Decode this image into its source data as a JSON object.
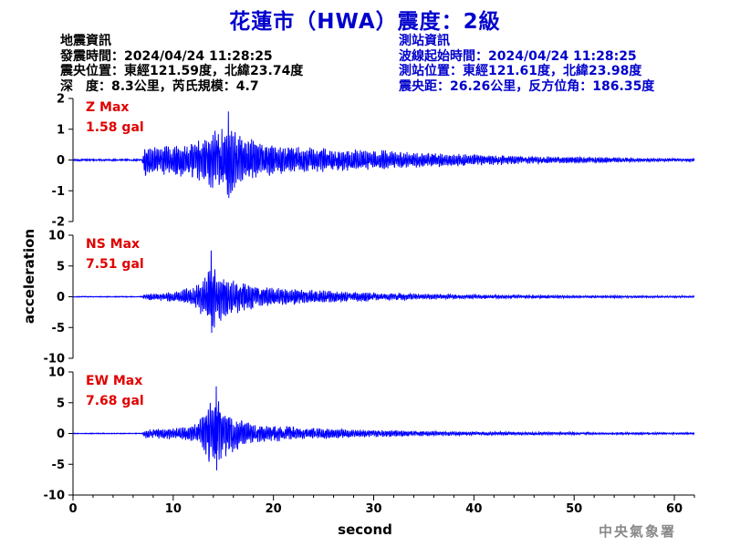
{
  "title": "花蓮市（HWA）震度：2級",
  "quake_info": {
    "heading": "地震資訊",
    "time": "發震時間：2024/04/24 11:28:25",
    "epicenter": "震央位置：東經121.59度，北緯23.74度",
    "depth_magnitude": "深　度：8.3公里，芮氏規模：4.7"
  },
  "station_info": {
    "heading": "測站資訊",
    "wave_start": "波線起始時間：2024/04/24 11:28:25",
    "location": "測站位置：東經121.61度，北緯23.98度",
    "distance": "震央距：26.26公里，反方位角：186.35度"
  },
  "agency": "中央氣象署",
  "colors": {
    "title": "#0000cc",
    "trace": "#0000ff",
    "max_label": "#e00000",
    "station_text": "#0000cc",
    "agency": "#8a8a8a"
  },
  "chart_data": {
    "type": "line",
    "xlabel": "second",
    "ylabel": "acceleration",
    "xlim": [
      0,
      62
    ],
    "x_ticks": [
      0,
      10,
      20,
      30,
      40,
      50,
      60
    ],
    "grid": false,
    "p_arrival_s": 7.0,
    "panels": [
      {
        "name": "Z Max",
        "max_value": "1.58 gal",
        "ylim": [
          -2,
          2
        ],
        "y_ticks": [
          -2,
          -1,
          0,
          1,
          2
        ],
        "peak_time_s": 15.5,
        "envelope": [
          [
            0,
            0.02
          ],
          [
            6.9,
            0.02
          ],
          [
            7.2,
            0.7
          ],
          [
            8.5,
            0.6
          ],
          [
            10,
            0.75
          ],
          [
            12,
            0.8
          ],
          [
            13.5,
            1.2
          ],
          [
            14.5,
            1.5
          ],
          [
            15.5,
            1.58
          ],
          [
            17,
            1.1
          ],
          [
            19,
            0.8
          ],
          [
            22,
            0.6
          ],
          [
            26,
            0.5
          ],
          [
            30,
            0.45
          ],
          [
            34,
            0.35
          ],
          [
            40,
            0.25
          ],
          [
            46,
            0.18
          ],
          [
            52,
            0.12
          ],
          [
            58,
            0.08
          ],
          [
            62,
            0.06
          ]
        ]
      },
      {
        "name": "NS Max",
        "max_value": "7.51 gal",
        "ylim": [
          -10,
          10
        ],
        "y_ticks": [
          -10,
          -5,
          0,
          5,
          10
        ],
        "peak_time_s": 13.8,
        "envelope": [
          [
            0,
            0.05
          ],
          [
            6.9,
            0.05
          ],
          [
            7.2,
            0.6
          ],
          [
            9,
            0.9
          ],
          [
            11,
            1.5
          ],
          [
            12.5,
            3
          ],
          [
            13.8,
            7.51
          ],
          [
            15,
            5.5
          ],
          [
            16.5,
            3.5
          ],
          [
            19,
            2.4
          ],
          [
            23,
            1.6
          ],
          [
            28,
            1.1
          ],
          [
            34,
            0.7
          ],
          [
            40,
            0.45
          ],
          [
            48,
            0.3
          ],
          [
            56,
            0.22
          ],
          [
            62,
            0.18
          ]
        ]
      },
      {
        "name": "EW Max",
        "max_value": "7.68 gal",
        "ylim": [
          -10,
          10
        ],
        "y_ticks": [
          -10,
          -5,
          0,
          5,
          10
        ],
        "peak_time_s": 14.3,
        "envelope": [
          [
            0,
            0.05
          ],
          [
            6.9,
            0.05
          ],
          [
            7.2,
            1.0
          ],
          [
            9,
            1.2
          ],
          [
            11,
            1.4
          ],
          [
            12.5,
            2.5
          ],
          [
            13.5,
            6.5
          ],
          [
            14.3,
            7.68
          ],
          [
            15.5,
            5.0
          ],
          [
            17,
            3.0
          ],
          [
            19,
            2.0
          ],
          [
            23,
            1.3
          ],
          [
            28,
            0.9
          ],
          [
            34,
            0.6
          ],
          [
            40,
            0.4
          ],
          [
            48,
            0.3
          ],
          [
            56,
            0.22
          ],
          [
            62,
            0.18
          ]
        ]
      }
    ]
  }
}
